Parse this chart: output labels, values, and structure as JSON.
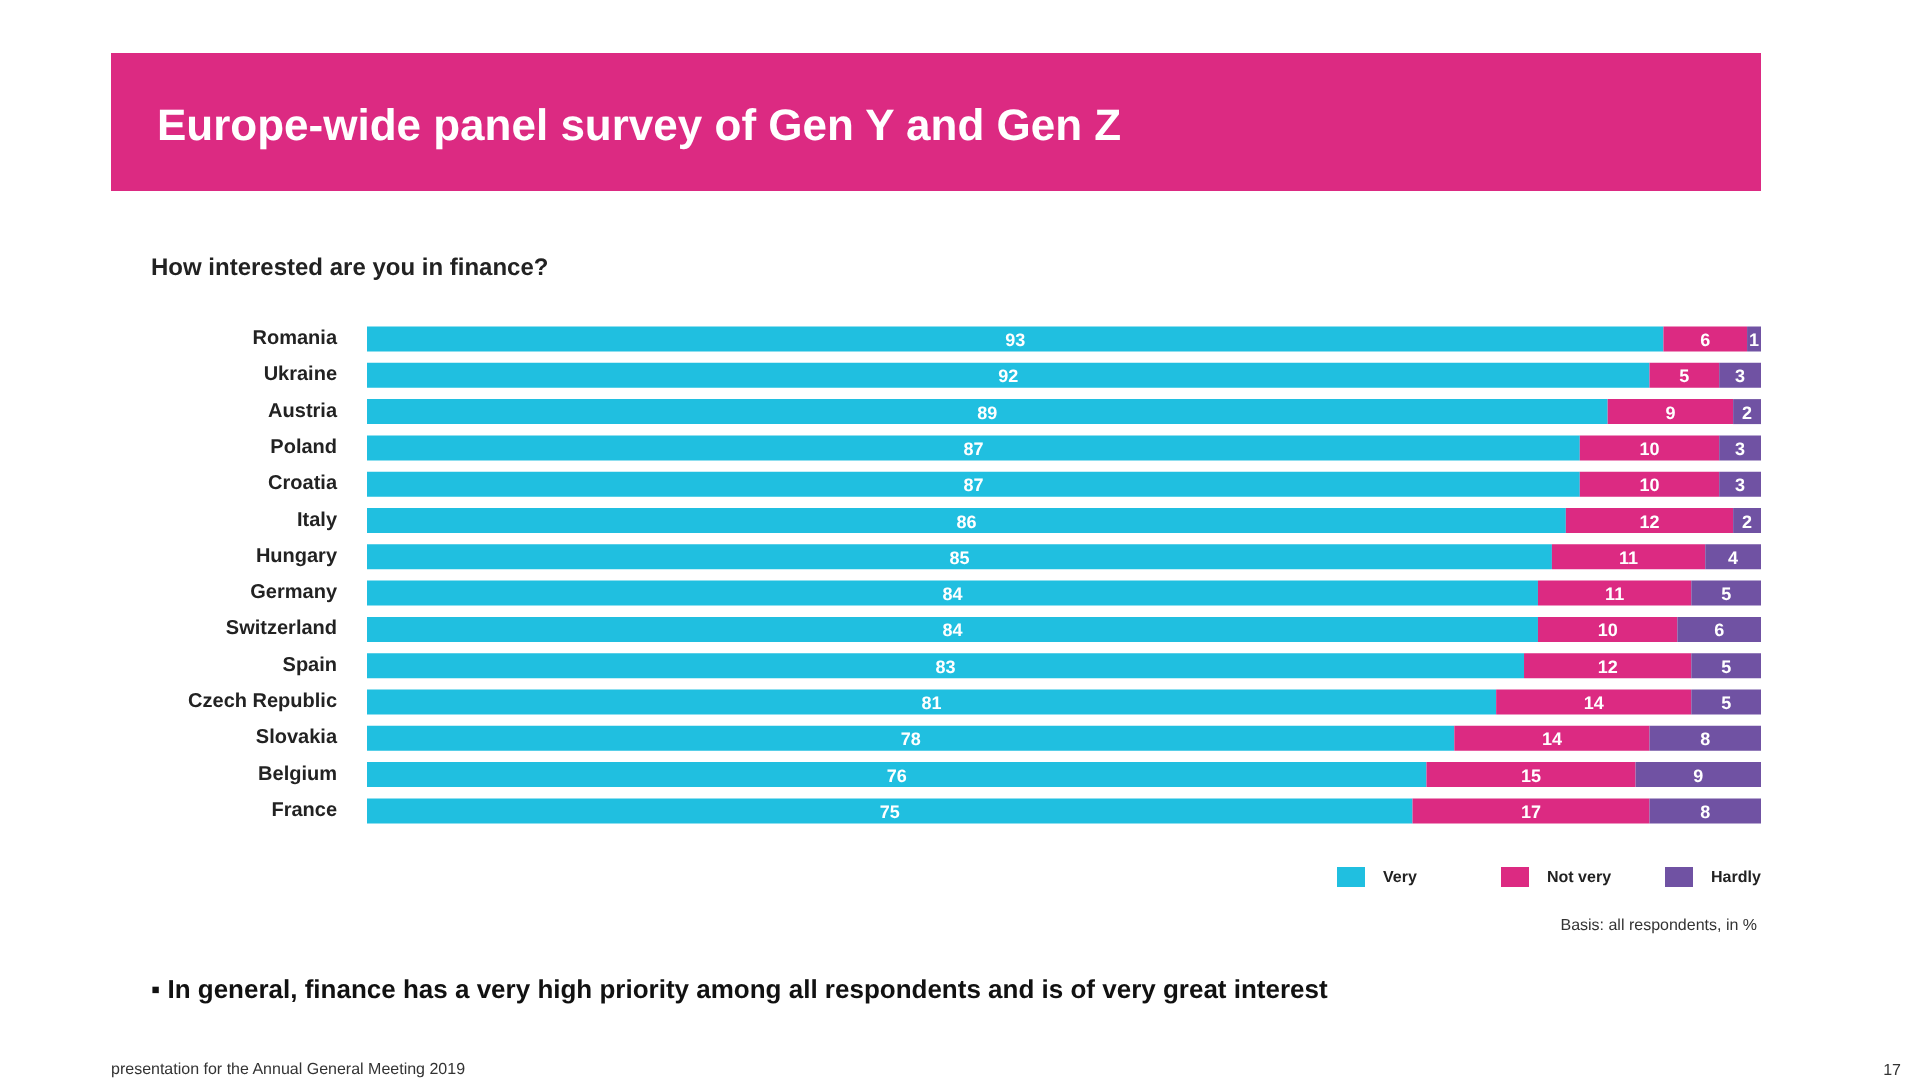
{
  "chart_data": {
    "type": "bar",
    "orientation": "horizontal",
    "stacked": true,
    "title": "Europe-wide panel survey of Gen Y and Gen Z",
    "subtitle": "How interested are you in finance?",
    "categories": [
      "Romania",
      "Ukraine",
      "Austria",
      "Poland",
      "Croatia",
      "Italy",
      "Hungary",
      "Germany",
      "Switzerland",
      "Spain",
      "Czech Republic",
      "Slovakia",
      "Belgium",
      "France"
    ],
    "series": [
      {
        "name": "Very",
        "color": "#20bfe0",
        "values": [
          93,
          92,
          89,
          87,
          87,
          86,
          85,
          84,
          84,
          83,
          81,
          78,
          76,
          75
        ]
      },
      {
        "name": "Not very",
        "color": "#dc2a82",
        "values": [
          6,
          5,
          9,
          10,
          10,
          12,
          11,
          11,
          10,
          12,
          14,
          14,
          15,
          17
        ]
      },
      {
        "name": "Hardly",
        "color": "#7052a3",
        "values": [
          1,
          3,
          2,
          3,
          3,
          2,
          4,
          5,
          6,
          5,
          5,
          8,
          9,
          8
        ]
      }
    ],
    "xlim": [
      0,
      100
    ],
    "data_labels": true,
    "tick_labels": "y",
    "legend": "bottom right",
    "annotations": [
      "Basis: all respondents, in %",
      "▪ In general, finance has a very high priority among all respondents and is of very great interest",
      "presentation for the Annual General Meeting 2019",
      "17"
    ]
  }
}
